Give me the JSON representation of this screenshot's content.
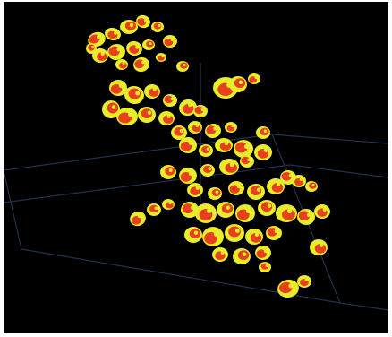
{
  "scene": {
    "background_color": "#000000",
    "frame_color": "#ffffff",
    "grid_line_color": "#22324a",
    "blob_colors": {
      "outer": "#e8ec2a",
      "core": "#e8401c",
      "speckle": "#d41e10"
    }
  }
}
